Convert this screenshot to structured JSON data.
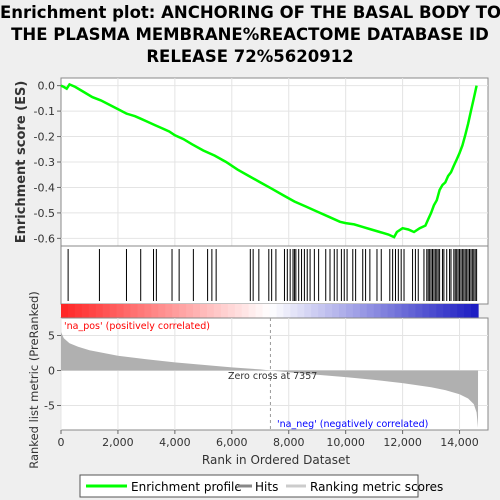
{
  "title_lines": [
    "Enrichment plot: ANCHORING OF THE BASAL BODY TO",
    "THE PLASMA MEMBRANE%REACTOME DATABASE ID",
    "RELEASE 72%5620912"
  ],
  "colors": {
    "es_line": "#00ff00",
    "hits": "#000000",
    "metric_fill": "#b0b0b0",
    "pos_label": "#ff0000",
    "neg_label": "#0000ff",
    "zero_line": "#999999",
    "bar_red": "#ff0000",
    "bar_blue": "#0000ff"
  },
  "chart_data": [
    {
      "type": "line",
      "name": "enrichment_profile",
      "ylabel": "Enrichment score (ES)",
      "xlim": [
        0,
        15000
      ],
      "ylim": [
        -0.63,
        0.03
      ],
      "yticks": [
        0.0,
        -0.1,
        -0.2,
        -0.3,
        -0.4,
        -0.5,
        -0.6
      ],
      "ytick_labels": [
        "0.0",
        "-0.1",
        "-0.2",
        "-0.3",
        "-0.4",
        "-0.5",
        "-0.6"
      ],
      "grid": true,
      "x": [
        0,
        100,
        200,
        300,
        500,
        800,
        1100,
        1400,
        1700,
        2000,
        2300,
        2600,
        2800,
        3000,
        3300,
        3500,
        3800,
        4000,
        4300,
        4600,
        5000,
        5400,
        5800,
        6200,
        6600,
        7000,
        7400,
        7800,
        8200,
        8600,
        9000,
        9400,
        9800,
        10000,
        10300,
        10600,
        10900,
        11200,
        11500,
        11700,
        11800,
        12000,
        12200,
        12400,
        12600,
        12800,
        12900,
        13000,
        13100,
        13200,
        13300,
        13400,
        13500,
        13600,
        13700,
        13800,
        13900,
        14000,
        14100,
        14200,
        14300,
        14400,
        14500,
        14600
      ],
      "y": [
        0.0,
        -0.005,
        -0.012,
        0.005,
        -0.005,
        -0.025,
        -0.045,
        -0.058,
        -0.075,
        -0.092,
        -0.11,
        -0.12,
        -0.13,
        -0.14,
        -0.155,
        -0.165,
        -0.18,
        -0.195,
        -0.21,
        -0.23,
        -0.255,
        -0.275,
        -0.3,
        -0.33,
        -0.355,
        -0.38,
        -0.405,
        -0.43,
        -0.455,
        -0.475,
        -0.495,
        -0.515,
        -0.535,
        -0.54,
        -0.545,
        -0.555,
        -0.565,
        -0.575,
        -0.585,
        -0.595,
        -0.575,
        -0.56,
        -0.565,
        -0.575,
        -0.56,
        -0.55,
        -0.525,
        -0.5,
        -0.47,
        -0.45,
        -0.41,
        -0.39,
        -0.38,
        -0.355,
        -0.34,
        -0.315,
        -0.29,
        -0.265,
        -0.235,
        -0.195,
        -0.15,
        -0.1,
        -0.05,
        0.0
      ]
    },
    {
      "type": "bar",
      "name": "hits",
      "xlim": [
        0,
        15000
      ],
      "hit_positions": [
        250,
        1350,
        2300,
        2800,
        3250,
        3350,
        3900,
        4150,
        4650,
        5150,
        5300,
        5450,
        6650,
        6750,
        6950,
        7300,
        7400,
        7550,
        7850,
        7950,
        8050,
        8150,
        8200,
        8250,
        8350,
        8450,
        8550,
        8650,
        8750,
        8900,
        9050,
        9300,
        9450,
        9600,
        9700,
        9850,
        9950,
        10050,
        10250,
        10350,
        10600,
        10700,
        10850,
        11100,
        11250,
        11550,
        11650,
        11750,
        11850,
        11950,
        12050,
        12350,
        12450,
        12550,
        12750,
        12850,
        12900,
        12950,
        13000,
        13050,
        13100,
        13150,
        13200,
        13250,
        13300,
        13400,
        13450,
        13550,
        13650,
        13700,
        13800,
        13850,
        13900,
        13950,
        14000,
        14050,
        14100,
        14150,
        14200,
        14250,
        14300,
        14350,
        14400,
        14450,
        14500,
        14550,
        14600
      ]
    },
    {
      "type": "area",
      "name": "ranked_list_metric",
      "xlabel": "Rank in Ordered Dataset",
      "ylabel": "Ranked list metric (PreRanked)",
      "xlim": [
        0,
        15000
      ],
      "ylim": [
        -8.5,
        7.5
      ],
      "xticks": [
        0,
        2000,
        4000,
        6000,
        8000,
        10000,
        12000,
        14000
      ],
      "xtick_labels": [
        "0",
        "2,000",
        "4,000",
        "6,000",
        "8,000",
        "10,000",
        "12,000",
        "14,000"
      ],
      "yticks": [
        5,
        0,
        -5
      ],
      "ytick_labels": [
        "5",
        "0",
        "-5"
      ],
      "x": [
        0,
        100,
        300,
        600,
        1000,
        1500,
        2000,
        3000,
        4000,
        5000,
        6000,
        7000,
        7357,
        8000,
        9000,
        10000,
        11000,
        12000,
        13000,
        13500,
        14000,
        14300,
        14500,
        14600,
        14650
      ],
      "y": [
        5.5,
        4.6,
        3.9,
        3.4,
        2.9,
        2.5,
        2.1,
        1.6,
        1.15,
        0.8,
        0.45,
        0.15,
        0.0,
        -0.25,
        -0.6,
        -0.95,
        -1.35,
        -1.8,
        -2.4,
        -2.8,
        -3.4,
        -4.0,
        -4.8,
        -6.0,
        -8.2
      ],
      "zero_cross": 7357,
      "annotations": {
        "pos": "'na_pos' (positively correlated)",
        "neg": "'na_neg' (negatively correlated)",
        "zero": "Zero cross at 7357"
      }
    }
  ],
  "legend": {
    "items": [
      {
        "label": "Enrichment profile"
      },
      {
        "label": "Hits"
      },
      {
        "label": "Ranking metric scores"
      }
    ]
  }
}
